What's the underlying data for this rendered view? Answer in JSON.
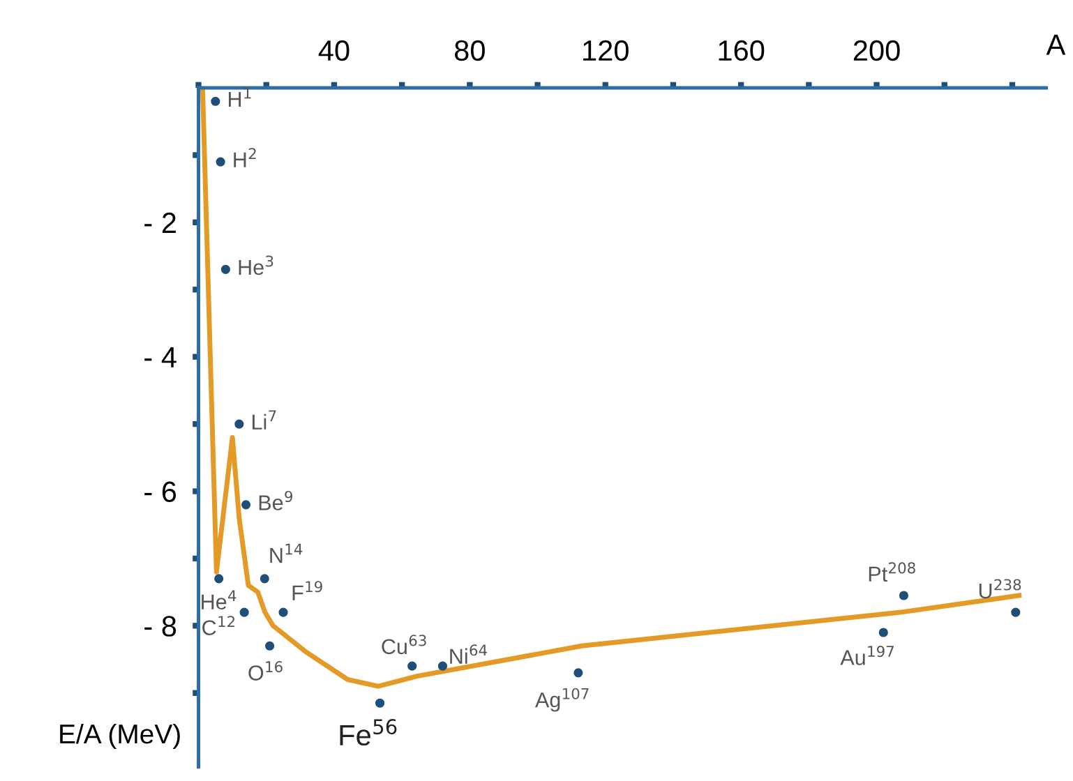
{
  "chart_data": {
    "type": "line",
    "xlabel": "A",
    "ylabel": "E/A (MeV)",
    "xlim": [
      0,
      250
    ],
    "ylim": [
      -10.1,
      0
    ],
    "xticks": [
      {
        "value": 0,
        "label": null
      },
      {
        "value": 20,
        "label": null
      },
      40,
      {
        "value": 60,
        "label": null
      },
      80,
      {
        "value": 100,
        "label": null
      },
      120,
      {
        "value": 140,
        "label": null
      },
      160,
      {
        "value": 180,
        "label": null
      },
      200,
      {
        "value": 220,
        "label": null
      },
      {
        "value": 240,
        "label": null
      }
    ],
    "yticks": [
      {
        "value": -1,
        "label": null
      },
      {
        "value": -2,
        "label": "- 2"
      },
      {
        "value": -3,
        "label": null
      },
      {
        "value": -4,
        "label": "- 4"
      },
      {
        "value": -5,
        "label": null
      },
      {
        "value": -6,
        "label": "- 6"
      },
      {
        "value": -7,
        "label": null
      },
      {
        "value": -8,
        "label": "- 8"
      },
      {
        "value": -9,
        "label": null
      }
    ],
    "grid": false,
    "legend": false,
    "series": [
      {
        "color": "#e39a26",
        "marker": "none",
        "line_style": "solid",
        "x": [
          1.2,
          3.3,
          5.3,
          10,
          12,
          14.7,
          17.5,
          19.6,
          22,
          32,
          44,
          53,
          64.5,
          113,
          207,
          242
        ],
        "values": [
          0,
          -3.7,
          -7.2,
          -5.2,
          -6.4,
          -7.4,
          -7.5,
          -7.8,
          -8.0,
          -8.4,
          -8.8,
          -8.9,
          -8.75,
          -8.3,
          -7.8,
          -7.55
        ]
      },
      {
        "type": "scatter",
        "color": "#1f4e79",
        "marker": "circle",
        "x": [
          5,
          6.5,
          8,
          12,
          14,
          6,
          19.5,
          13.5,
          25,
          21,
          53.5,
          63,
          72,
          112,
          202,
          208,
          241
        ],
        "values": [
          -0.2,
          -1.1,
          -2.7,
          -5.0,
          -6.2,
          -7.3,
          -7.3,
          -7.8,
          -7.8,
          -8.3,
          -9.15,
          -8.6,
          -8.6,
          -8.7,
          -8.1,
          -7.55,
          -7.8
        ]
      }
    ],
    "annotations": [
      {
        "text": "H$^{1}$",
        "x": 5,
        "y": -0.2
      },
      {
        "text": "H$^{2}$",
        "x": 6.5,
        "y": -1.1
      },
      {
        "text": "He$^{3}$",
        "x": 8,
        "y": -2.7
      },
      {
        "text": "Li$^{7}$",
        "x": 12,
        "y": -5.0
      },
      {
        "text": "Be$^{9}$",
        "x": 14,
        "y": -6.2
      },
      {
        "text": "He$^{4}$",
        "x": 6,
        "y": -7.3
      },
      {
        "text": "N$^{14}$",
        "x": 19.5,
        "y": -7.3
      },
      {
        "text": "C$^{12}$",
        "x": 13.5,
        "y": -7.8
      },
      {
        "text": "F$^{19}$",
        "x": 25,
        "y": -7.8
      },
      {
        "text": "O$^{16}$",
        "x": 21,
        "y": -8.3
      },
      {
        "text": "Fe$^{56}$",
        "x": 53.5,
        "y": -9.15
      },
      {
        "text": "Cu$^{63}$",
        "x": 63,
        "y": -8.6
      },
      {
        "text": "Ni$^{64}$",
        "x": 72,
        "y": -8.6
      },
      {
        "text": "Ag$^{107}$",
        "x": 112,
        "y": -8.7
      },
      {
        "text": "Au$^{197}$",
        "x": 202,
        "y": -8.1
      },
      {
        "text": "Pt$^{208}$",
        "x": 208,
        "y": -7.55
      },
      {
        "text": "U$^{238}$",
        "x": 241,
        "y": -7.8
      }
    ]
  }
}
